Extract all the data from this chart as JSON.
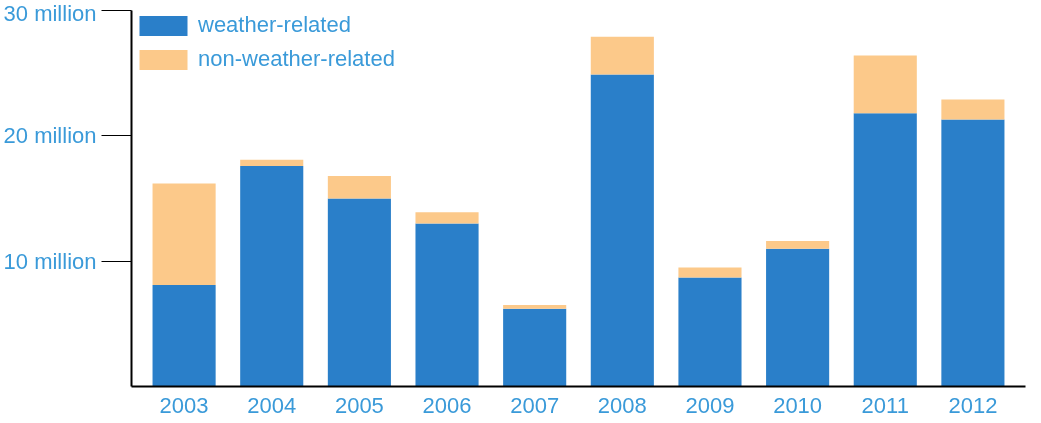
{
  "chart_data": {
    "type": "bar",
    "stacked": true,
    "categories": [
      "2003",
      "2004",
      "2005",
      "2006",
      "2007",
      "2008",
      "2009",
      "2010",
      "2011",
      "2012"
    ],
    "series": [
      {
        "name": "weather-related",
        "color": "#2a7fc9",
        "values": [
          8.1,
          17.6,
          15.0,
          13.0,
          6.2,
          24.9,
          8.7,
          11.0,
          21.8,
          21.3
        ]
      },
      {
        "name": "non-weather-related",
        "color": "#fcc98a",
        "values": [
          8.1,
          0.5,
          1.8,
          0.9,
          0.3,
          3.0,
          0.8,
          0.6,
          4.6,
          1.6
        ]
      }
    ],
    "ylim": [
      0,
      30
    ],
    "yticks": [
      {
        "value": 10,
        "label": "10 million"
      },
      {
        "value": 20,
        "label": "20 million"
      },
      {
        "value": 30,
        "label": "30 million"
      }
    ],
    "grid": false,
    "legend": "top"
  }
}
